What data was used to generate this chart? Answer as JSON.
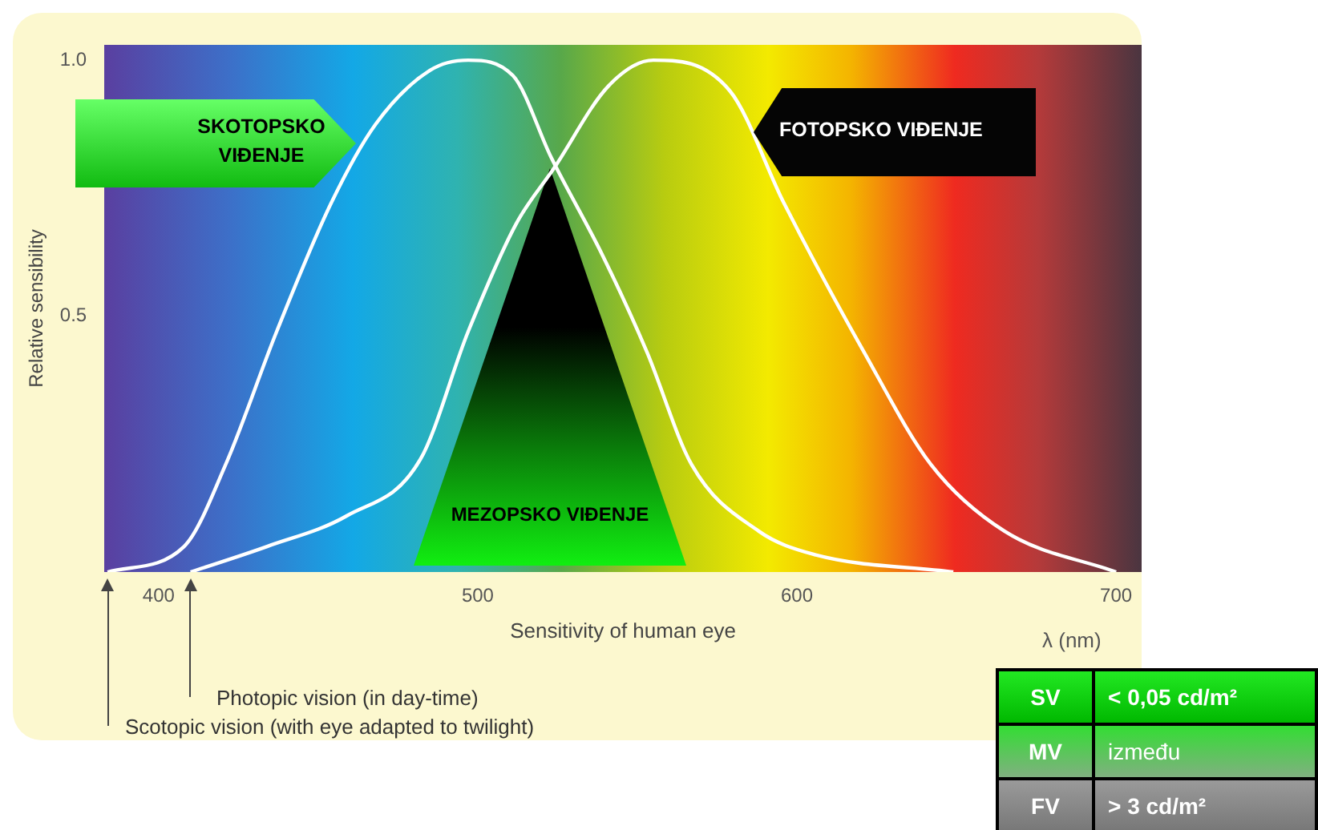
{
  "chart_data": {
    "type": "line",
    "xlabel": "Sensitivity of human eye",
    "ylabel": "Relative sensibility",
    "xlim": [
      383,
      708
    ],
    "xticks": [
      400,
      500,
      600,
      700
    ],
    "ylim": [
      0,
      1.03
    ],
    "yticks": [
      0.5,
      {
        "value": 1,
        "label": "1.0"
      }
    ],
    "grid": false,
    "legend": false,
    "marker": "none",
    "line_style": "solid",
    "series": [
      {
        "name": "SKOTOPSKO VIĐENJE",
        "color": "#ffffff",
        "x": [
          384,
          408,
          421,
          437,
          454,
          468,
          485,
          497,
          511,
          523,
          539,
          553,
          567,
          588,
          605,
          649
        ],
        "values": [
          0,
          0.05,
          0.21,
          0.47,
          0.72,
          0.875,
          0.98,
          1.0,
          0.97,
          0.81,
          0.62,
          0.43,
          0.21,
          0.08,
          0.035,
          0
        ]
      },
      {
        "name": "FOTOPSKO VIĐENJE",
        "color": "#ffffff",
        "x": [
          410,
          434,
          459,
          482,
          497,
          512,
          524,
          541,
          555,
          579,
          596,
          621,
          642,
          665,
          700
        ],
        "values": [
          0,
          0.05,
          0.11,
          0.22,
          0.47,
          0.68,
          0.79,
          0.95,
          1.0,
          0.94,
          0.72,
          0.43,
          0.21,
          0.08,
          0
        ]
      }
    ],
    "annotations": [
      "MEZOPSKO VIĐENJE",
      "Photopic vision (in day-time)",
      "Scotopic vision (with eye adapted to twilight)",
      "λ (nm)",
      "SV",
      "< 0,05 cd/m²",
      "MV",
      "između",
      "FV",
      "> 3 cd/m²"
    ]
  }
}
